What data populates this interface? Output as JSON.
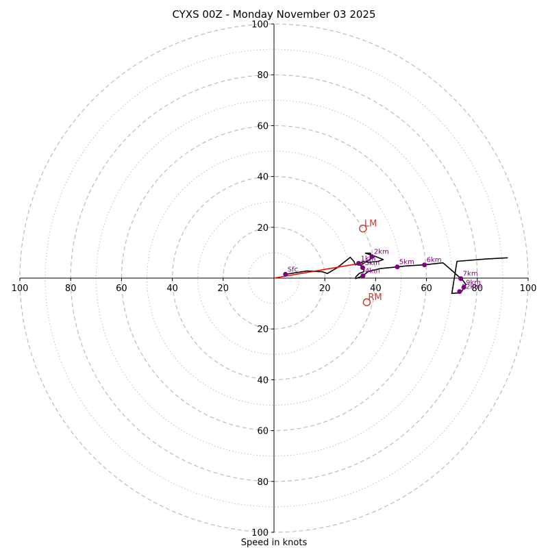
{
  "chart_data": {
    "type": "hodograph",
    "title": "CYXS 00Z - Monday November 03 2025",
    "xlabel": "Speed in knots",
    "range": [
      0,
      100
    ],
    "major_rings": [
      20,
      40,
      60,
      80,
      100
    ],
    "minor_rings": [
      10,
      30,
      50,
      70,
      90
    ],
    "axis_ticks": {
      "right": [
        "20",
        "40",
        "60",
        "80",
        "100"
      ],
      "left": [
        "20",
        "40",
        "60",
        "80",
        "100"
      ],
      "up": [
        "20",
        "40",
        "60",
        "80",
        "100"
      ],
      "down": [
        "20",
        "40",
        "60",
        "80",
        "100"
      ]
    },
    "colors": {
      "trace": "#000000",
      "height_marker": "#800080",
      "motion": "#c0392b",
      "shear_vector": "#ff0000",
      "grid": "#bbbbbb"
    },
    "hodograph_trace": [
      [
        4.5,
        1.5
      ],
      [
        13,
        2.8
      ],
      [
        19,
        2.5
      ],
      [
        21,
        1.8
      ],
      [
        25,
        4.2
      ],
      [
        30,
        8.2
      ],
      [
        31.5,
        6.5
      ],
      [
        32,
        5.2
      ],
      [
        33,
        5.5
      ],
      [
        35,
        6.5
      ],
      [
        37,
        6.2
      ],
      [
        41,
        6.6
      ],
      [
        43,
        7.3
      ],
      [
        40,
        8.5
      ],
      [
        36,
        9.8
      ],
      [
        38,
        9.8
      ],
      [
        38,
        7.5
      ],
      [
        34,
        5
      ],
      [
        35.5,
        4
      ],
      [
        35.3,
        2.5
      ],
      [
        33.5,
        1.8
      ],
      [
        32.7,
        1
      ],
      [
        32.2,
        0.5
      ],
      [
        32.1,
        -0.2
      ],
      [
        35,
        0.9
      ],
      [
        37,
        2.6
      ],
      [
        42,
        3.8
      ],
      [
        48.5,
        4.4
      ],
      [
        52,
        4.8
      ],
      [
        59,
        5.2
      ],
      [
        66.5,
        6
      ],
      [
        70,
        3
      ],
      [
        73,
        0.3
      ],
      [
        74.5,
        -1.1
      ],
      [
        75.5,
        -2.5
      ],
      [
        73.5,
        -5.8
      ],
      [
        70,
        -6
      ],
      [
        72,
        6.6
      ],
      [
        83,
        7.5
      ],
      [
        92,
        8
      ]
    ],
    "height_markers": [
      {
        "label": "Sfc",
        "u": 4.5,
        "v": 1.5
      },
      {
        "label": "1km",
        "u": 33.3,
        "v": 5.8
      },
      {
        "label": "2km",
        "u": 38.5,
        "v": 8.5
      },
      {
        "label": "3km",
        "u": 34.9,
        "v": 4.1
      },
      {
        "label": "4km",
        "u": 35.0,
        "v": 0.9
      },
      {
        "label": "5km",
        "u": 48.5,
        "v": 4.4
      },
      {
        "label": "6km",
        "u": 59.2,
        "v": 5.2
      },
      {
        "label": "7km",
        "u": 73.5,
        "v": -0.2
      },
      {
        "label": "9km",
        "u": 74.7,
        "v": -3.6
      },
      {
        "label": "12km",
        "u": 73.0,
        "v": -5.3
      }
    ],
    "storm_motion": [
      {
        "label": "LM",
        "u": 35,
        "v": 19.5
      },
      {
        "label": "RM",
        "u": 36.5,
        "v": -9.5
      }
    ],
    "shear_vector": {
      "from": [
        0,
        0
      ],
      "to": [
        35,
        6
      ]
    }
  }
}
